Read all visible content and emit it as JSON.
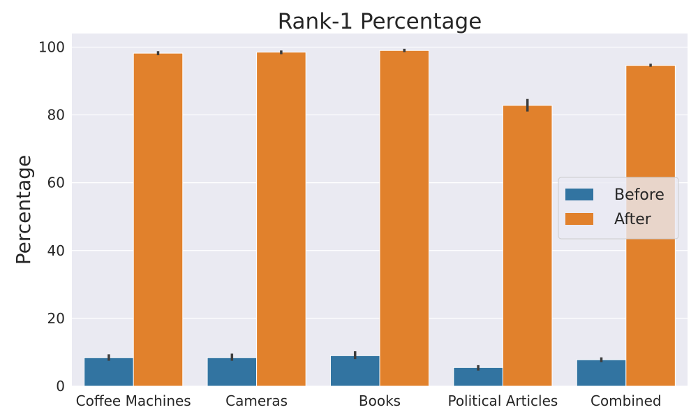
{
  "chart_data": {
    "type": "bar",
    "title": "Rank-1 Percentage",
    "xlabel": "",
    "ylabel": "Percentage",
    "ylim": [
      0,
      104
    ],
    "yticks": [
      0,
      20,
      40,
      60,
      80,
      100
    ],
    "grid": true,
    "legend_position": "center-right",
    "categories": [
      "Coffee Machines",
      "Cameras",
      "Books",
      "Political Articles",
      "Combined"
    ],
    "series": [
      {
        "name": "Before",
        "color": "#3274a1",
        "values": [
          8.4,
          8.4,
          9.0,
          5.5,
          7.8
        ],
        "error_low": [
          7.5,
          7.5,
          8.0,
          4.6,
          7.1
        ],
        "error_high": [
          9.4,
          9.6,
          10.3,
          6.2,
          8.5
        ]
      },
      {
        "name": "After",
        "color": "#e1812c",
        "values": [
          98.2,
          98.5,
          99.0,
          82.8,
          94.6
        ],
        "error_low": [
          97.6,
          97.9,
          98.5,
          81.0,
          94.2
        ],
        "error_high": [
          98.8,
          99.0,
          99.5,
          84.7,
          95.1
        ]
      }
    ]
  }
}
